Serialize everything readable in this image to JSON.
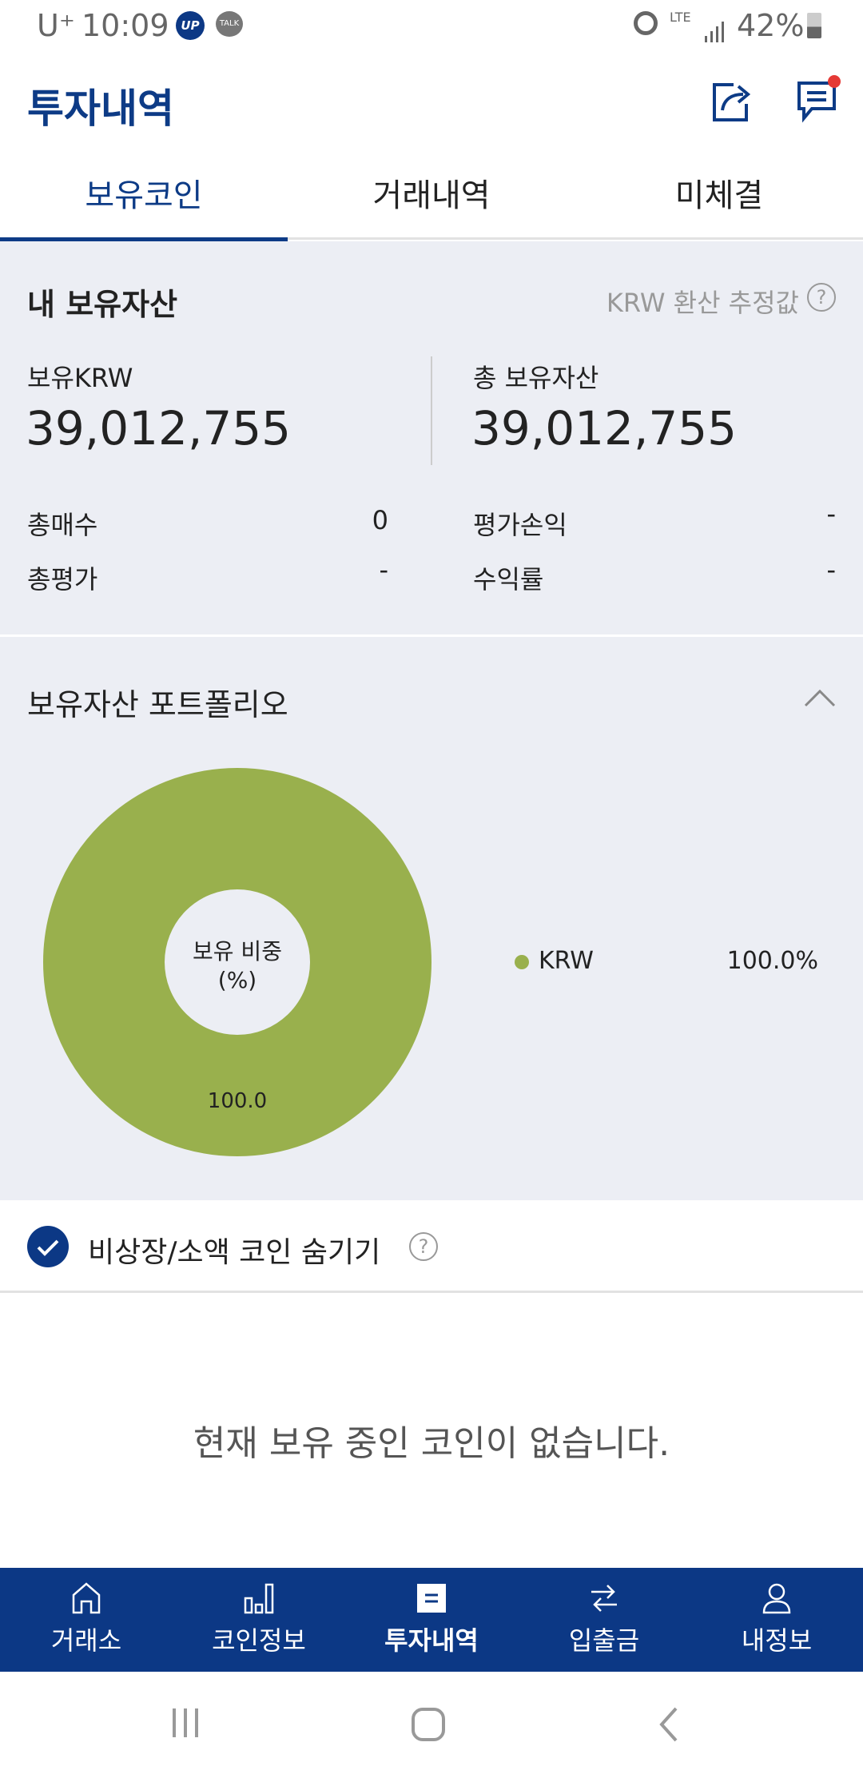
{
  "status_bar": {
    "carrier": "U⁺",
    "time": "10:09",
    "app_badge_up": "UP",
    "app_badge_talk": "TALK",
    "network": "LTE",
    "battery": "42%"
  },
  "header": {
    "title": "투자내역",
    "icons": [
      "share-icon",
      "message-icon"
    ],
    "notification_dot_color": "#e53935"
  },
  "tabs": [
    {
      "label": "보유코인",
      "active": true
    },
    {
      "label": "거래내역",
      "active": false
    },
    {
      "label": "미체결",
      "active": false
    }
  ],
  "summary": {
    "title": "내 보유자산",
    "hint": "KRW 환산 추정값",
    "krw_label": "보유KRW",
    "krw_value": "39,012,755",
    "total_label": "총 보유자산",
    "total_value": "39,012,755",
    "buy_label": "총매수",
    "buy_value": "0",
    "eval_label": "총평가",
    "eval_value": "-",
    "pnl_label": "평가손익",
    "pnl_value": "-",
    "rate_label": "수익률",
    "rate_value": "-"
  },
  "portfolio": {
    "title": "보유자산 포트폴리오",
    "center_label_1": "보유 비중",
    "center_label_2": "(%)",
    "legend": [
      {
        "name": "KRW",
        "value": "100.0%"
      }
    ]
  },
  "chart_data": {
    "type": "pie",
    "donut": true,
    "categories": [
      "KRW"
    ],
    "values": [
      100.0
    ],
    "data_labels": [
      "100.0"
    ],
    "colors": [
      "#99b04d"
    ],
    "legend_placement": "right"
  },
  "filter": {
    "label": "비상장/소액 코인 숨기기",
    "checked": true
  },
  "empty_message": "현재 보유 중인 코인이 없습니다.",
  "bottom_nav": [
    {
      "label": "거래소",
      "icon": "home-icon",
      "active": false
    },
    {
      "label": "코인정보",
      "icon": "bar-chart-icon",
      "active": false
    },
    {
      "label": "투자내역",
      "icon": "document-icon",
      "active": true
    },
    {
      "label": "입출금",
      "icon": "transfer-icon",
      "active": false
    },
    {
      "label": "내정보",
      "icon": "user-icon",
      "active": false
    }
  ],
  "colors": {
    "brand": "#0c3885",
    "chart_green": "#99b04d"
  }
}
